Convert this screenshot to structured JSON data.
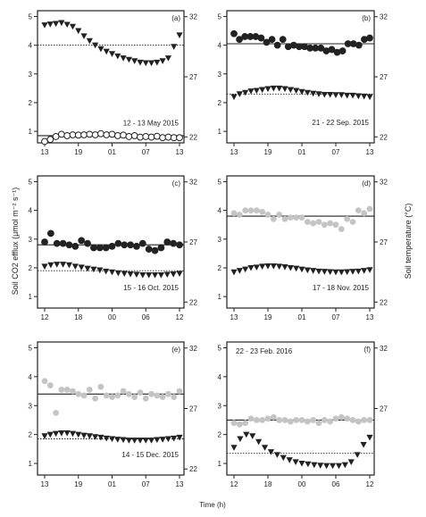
{
  "figure": {
    "ylabel_left": "Soil CO2 efflux (μmol m⁻² s⁻¹)",
    "ylabel_right": "Soil temperature (°C)",
    "xlabel": "Time (h)"
  },
  "chart_data": [
    {
      "type": "scatter",
      "panel": "(a)",
      "date_label": "12 - 13 May 2015",
      "x_ticks": [
        "13",
        "19",
        "01",
        "07",
        "13"
      ],
      "y_left": [
        1,
        2,
        3,
        4,
        5
      ],
      "y_right": [
        22,
        27,
        32
      ],
      "ylim_left": [
        0.6,
        5.2
      ],
      "ylim_right": [
        21.5,
        32.5
      ],
      "flux_style": "open",
      "flux_values": [
        0.65,
        0.72,
        0.82,
        0.9,
        0.85,
        0.88,
        0.87,
        0.88,
        0.9,
        0.88,
        0.92,
        0.88,
        0.9,
        0.85,
        0.87,
        0.82,
        0.85,
        0.8,
        0.82,
        0.8,
        0.83,
        0.78,
        0.8,
        0.78,
        0.78
      ],
      "flux_mean": 0.85,
      "temp_values": [
        4.7,
        4.73,
        4.75,
        4.78,
        4.72,
        4.65,
        4.5,
        4.32,
        4.15,
        4.0,
        3.87,
        3.78,
        3.7,
        3.62,
        3.55,
        3.5,
        3.45,
        3.4,
        3.38,
        3.38,
        3.4,
        3.45,
        3.55,
        3.95,
        4.35
      ],
      "temp_mean": 4.0
    },
    {
      "type": "scatter",
      "panel": "(b)",
      "date_label": "21 - 22 Sep. 2015",
      "x_ticks": [
        "13",
        "19",
        "01",
        "07",
        "13"
      ],
      "y_left": [
        1,
        2,
        3,
        4,
        5
      ],
      "y_right": [
        22,
        27,
        32
      ],
      "ylim_left": [
        0.6,
        5.2
      ],
      "ylim_right": [
        21.5,
        32.5
      ],
      "flux_style": "black",
      "flux_values": [
        4.4,
        4.2,
        4.3,
        4.3,
        4.3,
        4.25,
        4.1,
        4.2,
        4.0,
        4.2,
        3.95,
        4.0,
        3.95,
        3.95,
        3.9,
        3.9,
        3.9,
        3.8,
        3.85,
        3.75,
        3.8,
        4.05,
        4.05,
        4.0,
        4.2,
        4.25
      ],
      "flux_mean": 4.05,
      "temp_values": [
        2.2,
        2.3,
        2.35,
        2.4,
        2.42,
        2.45,
        2.48,
        2.5,
        2.5,
        2.48,
        2.45,
        2.42,
        2.38,
        2.35,
        2.32,
        2.3,
        2.28,
        2.28,
        2.27,
        2.27,
        2.25,
        2.25,
        2.23,
        2.22,
        2.2
      ],
      "temp_mean": 2.3
    },
    {
      "type": "scatter",
      "panel": "(c)",
      "date_label": "15 - 16 Oct. 2015",
      "x_ticks": [
        "12",
        "18",
        "00",
        "06",
        "12"
      ],
      "y_left": [
        1,
        2,
        3,
        4,
        5
      ],
      "y_right": [
        22,
        27,
        32
      ],
      "ylim_left": [
        0.6,
        5.2
      ],
      "ylim_right": [
        21.5,
        32.5
      ],
      "flux_style": "black",
      "flux_values": [
        2.9,
        3.2,
        2.85,
        2.85,
        2.8,
        2.75,
        2.95,
        2.85,
        2.7,
        2.7,
        2.7,
        2.75,
        2.85,
        2.8,
        2.8,
        2.75,
        2.85,
        2.65,
        2.6,
        2.7,
        2.9,
        2.85,
        2.8
      ],
      "flux_mean": 2.8,
      "temp_values": [
        2.05,
        2.1,
        2.12,
        2.12,
        2.1,
        2.05,
        2.02,
        1.98,
        1.95,
        1.92,
        1.88,
        1.85,
        1.82,
        1.8,
        1.78,
        1.77,
        1.75,
        1.75,
        1.75,
        1.75,
        1.77,
        1.78,
        1.8
      ],
      "temp_mean": 1.9
    },
    {
      "type": "scatter",
      "panel": "(d)",
      "date_label": "17 - 18 Nov. 2015",
      "x_ticks": [
        "13",
        "19",
        "01",
        "07",
        "13"
      ],
      "y_left": [
        1,
        2,
        3,
        4,
        5
      ],
      "y_right": [
        22,
        27,
        32
      ],
      "ylim_left": [
        0.6,
        5.2
      ],
      "ylim_right": [
        21.5,
        32.5
      ],
      "flux_style": "grey",
      "flux_values": [
        3.9,
        3.85,
        4.0,
        4.0,
        4.0,
        3.95,
        3.85,
        3.7,
        3.85,
        3.7,
        3.75,
        3.75,
        3.75,
        3.6,
        3.55,
        3.6,
        3.5,
        3.55,
        3.5,
        3.35,
        3.7,
        3.6,
        4.0,
        3.9,
        4.05
      ],
      "flux_mean": 3.8,
      "temp_values": [
        1.85,
        1.9,
        1.95,
        2.0,
        2.02,
        2.05,
        2.06,
        2.06,
        2.05,
        2.03,
        2.0,
        1.98,
        1.95,
        1.92,
        1.9,
        1.88,
        1.87,
        1.86,
        1.85,
        1.85,
        1.86,
        1.87,
        1.88,
        1.9,
        1.93
      ],
      "temp_mean": null
    },
    {
      "type": "scatter",
      "panel": "(e)",
      "date_label": "14 - 15 Dec. 2015",
      "x_ticks": [
        "13",
        "19",
        "01",
        "07",
        "13"
      ],
      "y_left": [
        1,
        2,
        3,
        4,
        5
      ],
      "y_right": [
        22,
        27,
        32
      ],
      "ylim_left": [
        0.6,
        5.2
      ],
      "ylim_right": [
        21.5,
        32.5
      ],
      "flux_style": "grey",
      "flux_values": [
        3.85,
        3.7,
        2.75,
        3.55,
        3.55,
        3.5,
        3.4,
        3.35,
        3.55,
        3.25,
        3.65,
        3.35,
        3.3,
        3.35,
        3.5,
        3.4,
        3.3,
        3.45,
        3.25,
        3.4,
        3.35,
        3.3,
        3.4,
        3.3,
        3.5
      ],
      "flux_mean": 3.4,
      "temp_values": [
        1.95,
        2.0,
        2.03,
        2.05,
        2.05,
        2.03,
        2.0,
        1.97,
        1.95,
        1.92,
        1.9,
        1.87,
        1.85,
        1.83,
        1.82,
        1.8,
        1.8,
        1.8,
        1.8,
        1.8,
        1.82,
        1.83,
        1.85,
        1.87,
        1.9
      ],
      "temp_mean": 1.85
    },
    {
      "type": "scatter",
      "panel": "(f)",
      "date_label": "22 - 23 Feb. 2016",
      "x_ticks": [
        "12",
        "18",
        "00",
        "06",
        "12"
      ],
      "y_left": [
        1,
        2,
        3,
        4,
        5
      ],
      "y_right": [
        27,
        32
      ],
      "ylim_left": [
        0.6,
        5.2
      ],
      "ylim_right": [
        21.5,
        32.5
      ],
      "flux_style": "grey",
      "flux_values": [
        2.4,
        2.35,
        2.4,
        2.55,
        2.5,
        2.5,
        2.55,
        2.6,
        2.5,
        2.5,
        2.45,
        2.5,
        2.5,
        2.45,
        2.5,
        2.4,
        2.5,
        2.45,
        2.55,
        2.6,
        2.55,
        2.5,
        2.45,
        2.5,
        2.5
      ],
      "flux_mean": 2.5,
      "temp_values": [
        1.55,
        1.85,
        2.0,
        1.95,
        1.75,
        1.55,
        1.4,
        1.3,
        1.2,
        1.12,
        1.05,
        1.0,
        0.98,
        0.95,
        0.93,
        0.92,
        0.92,
        0.92,
        0.95,
        1.05,
        1.3,
        1.65,
        1.9
      ],
      "temp_mean": 1.35
    }
  ]
}
